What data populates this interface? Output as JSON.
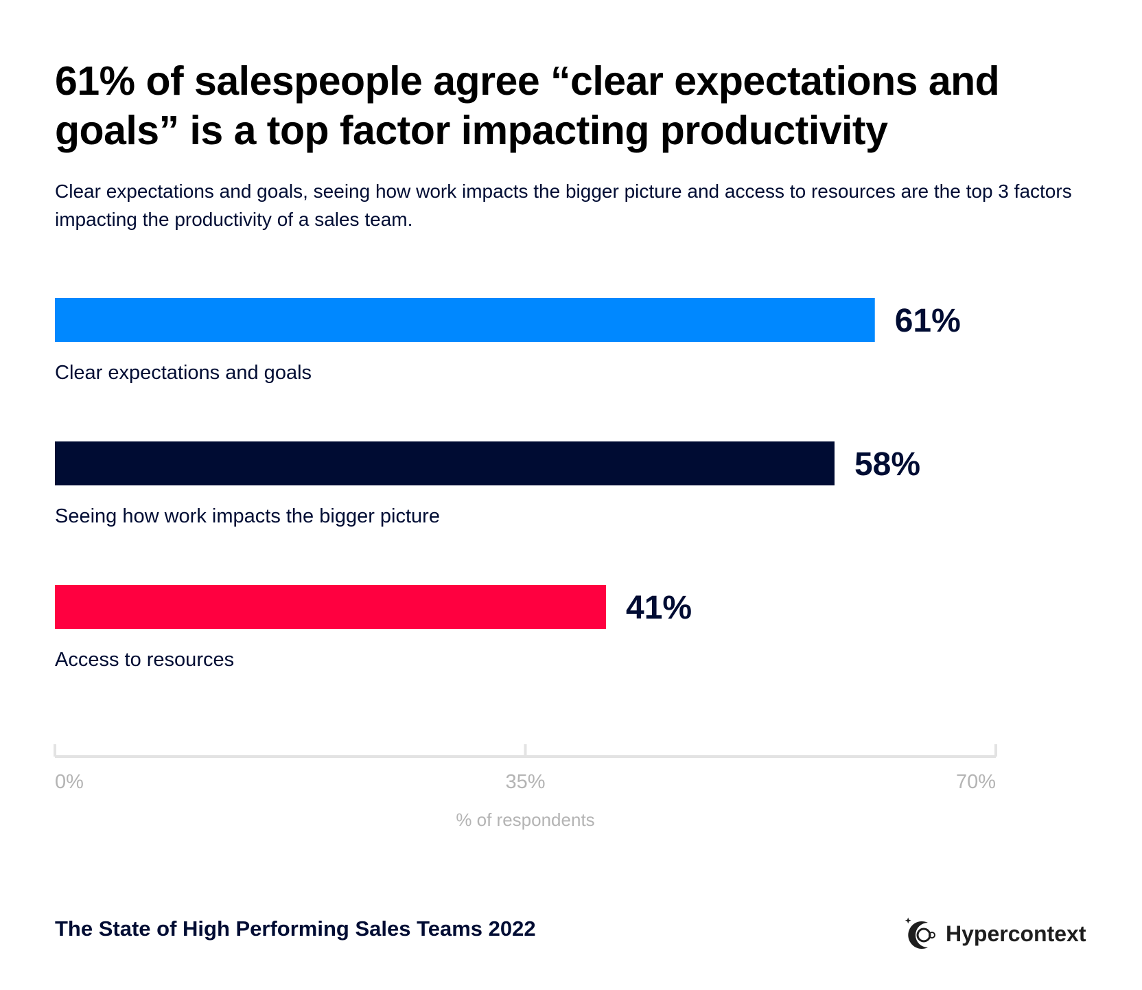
{
  "title": "61% of salespeople agree “clear expectations and goals” is a top factor impacting productivity",
  "subtitle": "Clear expectations and goals, seeing how work impacts the bigger picture and access to resources are the top 3 factors impacting the productivity of a sales team.",
  "footer": "The State of High Performing Sales Teams 2022",
  "logo": {
    "text": "Hypercontext",
    "icon": "moon-astronaut-icon"
  },
  "chart_data": {
    "type": "bar",
    "orientation": "horizontal",
    "categories": [
      "Clear expectations and goals",
      "Seeing how work impacts the bigger picture",
      "Access to resources"
    ],
    "values": [
      61,
      58,
      41
    ],
    "value_labels": [
      "61%",
      "58%",
      "41%"
    ],
    "colors": [
      "#0088ff",
      "#000c33",
      "#ff0040"
    ],
    "xlabel": "% of respondents",
    "xlim": [
      0,
      70
    ],
    "xticks": [
      0,
      35,
      70
    ],
    "xtick_labels": [
      "0%",
      "35%",
      "70%"
    ],
    "grid": false
  }
}
